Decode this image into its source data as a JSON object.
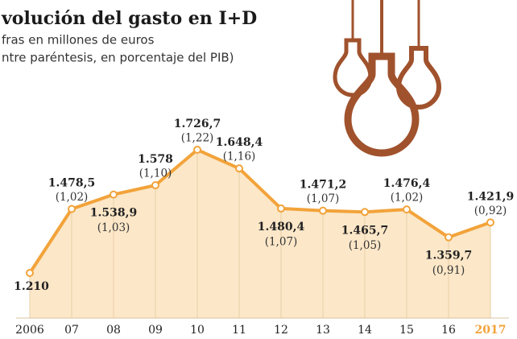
{
  "chart_data": {
    "type": "area",
    "title": "volución del gasto en I+D",
    "subtitle": [
      "fras en millones de euros",
      "ntre paréntesis, en porcentaje del PIB)"
    ],
    "categories": [
      "2006",
      "07",
      "08",
      "09",
      "10",
      "11",
      "12",
      "13",
      "14",
      "15",
      "16",
      "2017"
    ],
    "color": "#f2a33a",
    "fill": "#fce7c8",
    "values": [
      1210,
      1478.5,
      1538.9,
      1578,
      1726.7,
      1648.4,
      1480.4,
      1471.2,
      1465.7,
      1476.4,
      1359.7,
      1421.9
    ],
    "value_labels": [
      "1.210",
      "1.478,5",
      "1.538,9",
      "1.578",
      "1.726,7",
      "1.648,4",
      "1.480,4",
      "1.471,2",
      "1.465,7",
      "1.476,4",
      "1.359,7",
      "1.421,9"
    ],
    "pib": {
      "values": [
        null,
        1.02,
        1.03,
        1.1,
        1.22,
        1.16,
        1.07,
        1.07,
        1.05,
        1.02,
        0.91,
        0.92
      ],
      "value_labels": [
        null,
        "(1,02)",
        "(1,03)",
        "(1,10)",
        "(1,22)",
        "(1,16)",
        "(1,07)",
        "(1,07)",
        "(1,05)",
        "(1,02)",
        "(0,91)",
        "(0,92)"
      ]
    }
  }
}
